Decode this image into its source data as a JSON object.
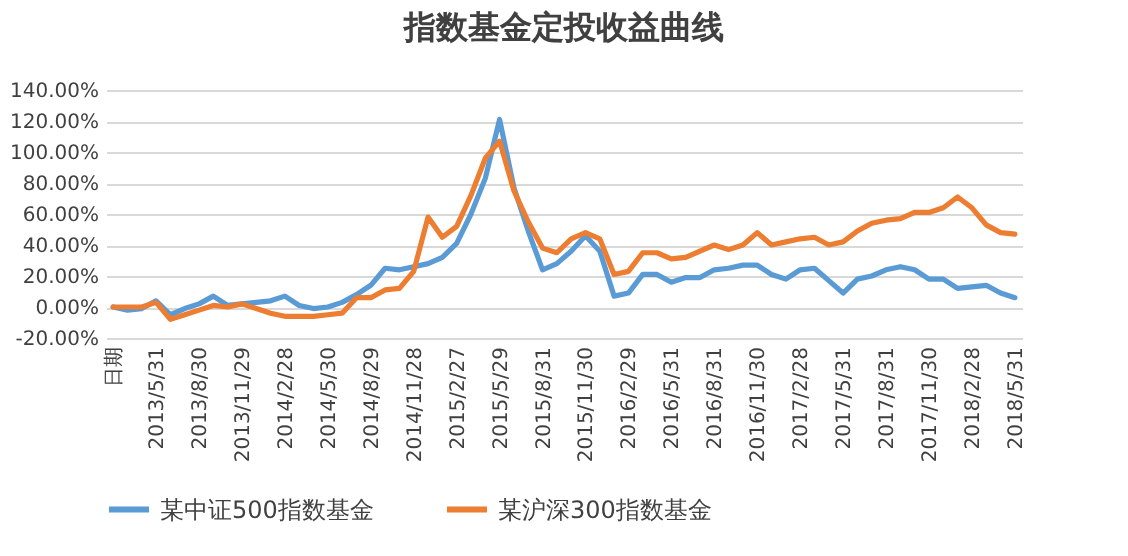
{
  "chart_data": {
    "type": "line",
    "title": "指数基金定投收益曲线",
    "categories": [
      "日期",
      null,
      null,
      "2013/5/31",
      null,
      null,
      "2013/8/30",
      null,
      null,
      "2013/11/29",
      null,
      null,
      "2014/2/28",
      null,
      null,
      "2014/5/30",
      null,
      null,
      "2014/8/29",
      null,
      null,
      "2014/11/28",
      null,
      null,
      "2015/2/27",
      null,
      null,
      "2015/5/29",
      null,
      null,
      "2015/8/31",
      null,
      null,
      "2015/11/30",
      null,
      null,
      "2016/2/29",
      null,
      null,
      "2016/5/31",
      null,
      null,
      "2016/8/31",
      null,
      null,
      "2016/11/30",
      null,
      null,
      "2017/2/28",
      null,
      null,
      "2017/5/31",
      null,
      null,
      "2017/8/31",
      null,
      null,
      "2017/11/30",
      null,
      null,
      "2018/2/28",
      null,
      null,
      "2018/5/31"
    ],
    "series": [
      {
        "name": "某中证500指数基金",
        "color": "#5b9bd5",
        "values": [
          0,
          -2,
          -1,
          4,
          -5,
          -1,
          2,
          7,
          1,
          2,
          3,
          4,
          7,
          1,
          -1,
          0,
          3,
          8,
          14,
          25,
          24,
          26,
          28,
          32,
          41,
          60,
          83,
          121,
          77,
          49,
          24,
          28,
          36,
          46,
          36,
          7,
          9,
          21,
          21,
          16,
          19,
          19,
          24,
          25,
          27,
          27,
          21,
          18,
          24,
          25,
          17,
          9,
          18,
          20,
          24,
          26,
          24,
          18,
          18,
          12,
          13,
          14,
          9,
          6
        ]
      },
      {
        "name": "某沪深300指数基金",
        "color": "#ed7d31",
        "values": [
          0,
          0,
          0,
          3,
          -8,
          -5,
          -2,
          1,
          0,
          2,
          -1,
          -4,
          -6,
          -6,
          -6,
          -5,
          -4,
          6,
          6,
          11,
          12,
          23,
          58,
          45,
          52,
          72,
          96,
          107,
          75,
          55,
          38,
          35,
          44,
          48,
          44,
          21,
          23,
          35,
          35,
          31,
          32,
          36,
          40,
          37,
          40,
          48,
          40,
          42,
          44,
          45,
          40,
          42,
          49,
          54,
          56,
          57,
          61,
          61,
          64,
          71,
          64,
          53,
          48,
          47
        ]
      }
    ],
    "ylim": [
      -20,
      140
    ],
    "yticks": [
      {
        "value": -20,
        "label": "-20.00%"
      },
      {
        "value": 0,
        "label": "0.00%"
      },
      {
        "value": 20,
        "label": "20.00%"
      },
      {
        "value": 40,
        "label": "40.00%"
      },
      {
        "value": 60,
        "label": "60.00%"
      },
      {
        "value": 80,
        "label": "80.00%"
      },
      {
        "value": 100,
        "label": "100.00%"
      },
      {
        "value": 120,
        "label": "120.00%"
      },
      {
        "value": 140,
        "label": "140.00%"
      }
    ],
    "grid": "y",
    "legend": "bottom",
    "marker": "none",
    "line_style": "solid"
  }
}
